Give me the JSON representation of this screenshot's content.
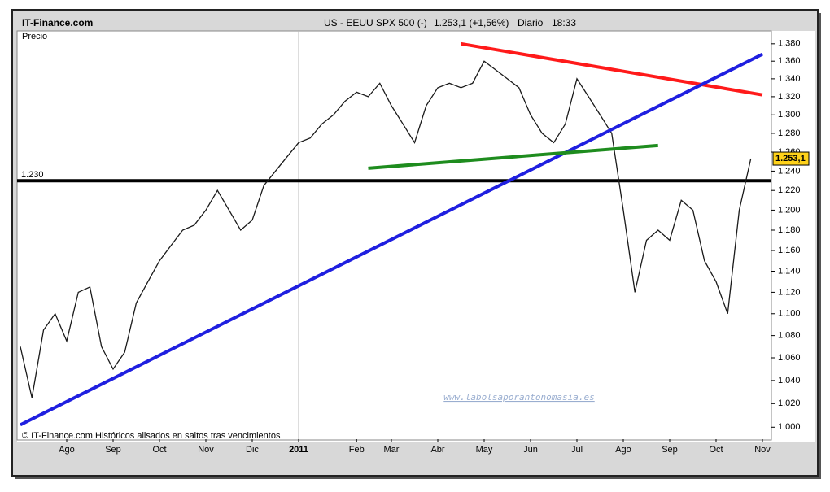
{
  "header": {
    "brand": "IT-Finance.com",
    "instrument": "US - EEUU SPX 500 (-)",
    "quote": "1.253,1 (+1,56%)",
    "period": "Diario",
    "time": "18:33"
  },
  "chart_data": {
    "type": "line",
    "y_label": "Precio",
    "log_scale": true,
    "color": "#1a1a1a",
    "categories": [
      null,
      null,
      null,
      null,
      "Ago",
      null,
      null,
      null,
      "Sep",
      null,
      null,
      null,
      "Oct",
      null,
      null,
      null,
      "Nov",
      null,
      null,
      null,
      "Dic",
      null,
      null,
      null,
      "2011",
      null,
      null,
      null,
      null,
      "Feb",
      null,
      null,
      "Mar",
      null,
      null,
      null,
      "Abr",
      null,
      null,
      null,
      "May",
      null,
      null,
      null,
      "Jun",
      null,
      null,
      null,
      "Jul",
      null,
      null,
      null,
      "Ago",
      null,
      null,
      null,
      "Sep",
      null,
      null,
      null,
      "Oct",
      null,
      null,
      null,
      "Nov"
    ],
    "values": [
      1070,
      1025,
      1085,
      1100,
      1075,
      1120,
      1125,
      1070,
      1050,
      1065,
      1110,
      1130,
      1150,
      1165,
      1180,
      1185,
      1200,
      1220,
      1200,
      1180,
      1190,
      1225,
      1240,
      1255,
      1270,
      1275,
      1290,
      1300,
      1315,
      1325,
      1320,
      1335,
      1310,
      1290,
      1270,
      1310,
      1330,
      1335,
      1330,
      1335,
      1360,
      1350,
      1340,
      1330,
      1300,
      1280,
      1270,
      1290,
      1340,
      1320,
      1300,
      1280,
      1200,
      1120,
      1170,
      1180,
      1170,
      1210,
      1200,
      1150,
      1130,
      1100,
      1200,
      1253.1,
      null
    ],
    "ylim": [
      990,
      1395
    ],
    "yticks": [
      {
        "value": 1000,
        "label": "1.000"
      },
      {
        "value": 1020,
        "label": "1.020"
      },
      {
        "value": 1040,
        "label": "1.040"
      },
      {
        "value": 1060,
        "label": "1.060"
      },
      {
        "value": 1080,
        "label": "1.080"
      },
      {
        "value": 1100,
        "label": "1.100"
      },
      {
        "value": 1120,
        "label": "1.120"
      },
      {
        "value": 1140,
        "label": "1.140"
      },
      {
        "value": 1160,
        "label": "1.160"
      },
      {
        "value": 1180,
        "label": "1.180"
      },
      {
        "value": 1200,
        "label": "1.200"
      },
      {
        "value": 1220,
        "label": "1.220"
      },
      {
        "value": 1240,
        "label": "1.240"
      },
      {
        "value": 1260,
        "label": "1.260"
      },
      {
        "value": 1280,
        "label": "1.280"
      },
      {
        "value": 1300,
        "label": "1.300"
      },
      {
        "value": 1320,
        "label": "1.320"
      },
      {
        "value": 1340,
        "label": "1.340"
      },
      {
        "value": 1360,
        "label": "1.360"
      },
      {
        "value": 1380,
        "label": "1.380"
      }
    ],
    "reference_line": {
      "value": 1230,
      "label": "1.230",
      "color": "#000000"
    },
    "last_label": {
      "value": 1253.1,
      "label": "1.253,1"
    },
    "trend_lines": [
      {
        "color": "#ff1a1a",
        "from": {
          "category": 38,
          "value": 1380
        },
        "to": {
          "category": 64,
          "value": 1322
        }
      },
      {
        "color": "#1f1fe0",
        "from": {
          "category": 0,
          "value": 1002
        },
        "to": {
          "category": 64,
          "value": 1368
        }
      },
      {
        "color": "#1e8c1e",
        "from": {
          "category": 30,
          "value": 1243
        },
        "to": {
          "category": 55,
          "value": 1267
        }
      }
    ],
    "footer": "© IT-Finance.com Históricos alisados en saltos tras vencimientos",
    "watermark": "www.labolsaporantonomasia.es"
  }
}
